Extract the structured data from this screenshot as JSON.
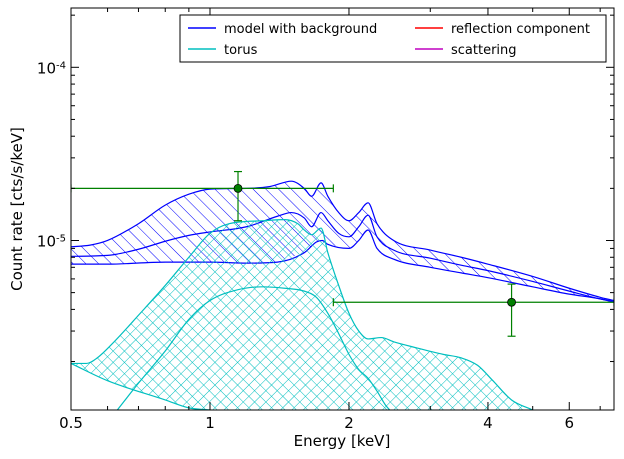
{
  "chart_data": {
    "type": "line",
    "title": "",
    "xlabel": "Energy [keV]",
    "ylabel": "Count rate [cts/s/keV]",
    "x_scale": "log",
    "y_scale": "log",
    "xlim": [
      0.5,
      7.5
    ],
    "ylim": [
      1.05e-06,
      0.00022
    ],
    "grid": false,
    "legend_position": "top-right",
    "legend_columns": 2,
    "x_ticks": [
      {
        "value": 0.5,
        "label": "0.5"
      },
      {
        "value": 1,
        "label": "1"
      },
      {
        "value": 2,
        "label": "2"
      },
      {
        "value": 4,
        "label": "4"
      },
      {
        "value": 6,
        "label": "6"
      }
    ],
    "y_ticks": [
      {
        "value": 1e-05,
        "base": "10",
        "exponent": "-5"
      },
      {
        "value": 0.0001,
        "base": "10",
        "exponent": "-4"
      }
    ],
    "legend": [
      {
        "name": "model with background",
        "color": "#0000ff"
      },
      {
        "name": "reflection component",
        "color": "#ff0000"
      },
      {
        "name": "torus",
        "color": "#00bfbf"
      },
      {
        "name": "scattering",
        "color": "#bf00bf"
      }
    ],
    "bands": [
      {
        "name": "model with background",
        "color": "#0000ff",
        "hatch": "diagonal",
        "upper": [
          [
            0.5,
            9.2e-06
          ],
          [
            0.55,
            9.4e-06
          ],
          [
            0.6,
            1e-05
          ],
          [
            0.7,
            1.25e-05
          ],
          [
            0.8,
            1.6e-05
          ],
          [
            0.9,
            1.85e-05
          ],
          [
            1.0,
            1.98e-05
          ],
          [
            1.2,
            2e-05
          ],
          [
            1.35,
            2.05e-05
          ],
          [
            1.5,
            2.2e-05
          ],
          [
            1.6,
            2e-05
          ],
          [
            1.66,
            1.8e-05
          ],
          [
            1.74,
            2.15e-05
          ],
          [
            1.8,
            1.8e-05
          ],
          [
            1.9,
            1.45e-05
          ],
          [
            2.0,
            1.3e-05
          ],
          [
            2.1,
            1.45e-05
          ],
          [
            2.2,
            1.65e-05
          ],
          [
            2.3,
            1.25e-05
          ],
          [
            2.5,
            1e-05
          ],
          [
            3.0,
            8.8e-06
          ],
          [
            3.5,
            8e-06
          ],
          [
            4.0,
            7.3e-06
          ],
          [
            5.0,
            6.2e-06
          ],
          [
            6.0,
            5.3e-06
          ],
          [
            7.0,
            4.7e-06
          ],
          [
            7.5,
            4.5e-06
          ]
        ],
        "lower": [
          [
            0.5,
            7.3e-06
          ],
          [
            0.6,
            7.3e-06
          ],
          [
            0.8,
            7.5e-06
          ],
          [
            1.0,
            7.5e-06
          ],
          [
            1.2,
            7.4e-06
          ],
          [
            1.4,
            7.5e-06
          ],
          [
            1.6,
            8.5e-06
          ],
          [
            1.7,
            9.8e-06
          ],
          [
            1.75,
            1e-05
          ],
          [
            1.8,
            9.5e-06
          ],
          [
            2.0,
            9e-06
          ],
          [
            2.1,
            1e-05
          ],
          [
            2.2,
            1.15e-05
          ],
          [
            2.3,
            9e-06
          ],
          [
            2.5,
            7.8e-06
          ],
          [
            3.0,
            7e-06
          ],
          [
            3.5,
            6.5e-06
          ],
          [
            4.0,
            6.1e-06
          ],
          [
            5.0,
            5.4e-06
          ],
          [
            6.0,
            4.9e-06
          ],
          [
            7.0,
            4.6e-06
          ],
          [
            7.5,
            4.4e-06
          ]
        ],
        "middle": [
          [
            0.5,
            8.1e-06
          ],
          [
            0.6,
            8.2e-06
          ],
          [
            0.7,
            8.9e-06
          ],
          [
            0.8,
            9.9e-06
          ],
          [
            0.9,
            1.07e-05
          ],
          [
            1.0,
            1.12e-05
          ],
          [
            1.2,
            1.2e-05
          ],
          [
            1.4,
            1.38e-05
          ],
          [
            1.5,
            1.45e-05
          ],
          [
            1.6,
            1.35e-05
          ],
          [
            1.66,
            1.2e-05
          ],
          [
            1.74,
            1.45e-05
          ],
          [
            1.8,
            1.3e-05
          ],
          [
            1.9,
            1.1e-05
          ],
          [
            2.0,
            1.05e-05
          ],
          [
            2.1,
            1.2e-05
          ],
          [
            2.2,
            1.4e-05
          ],
          [
            2.3,
            1.05e-05
          ],
          [
            2.5,
            8.8e-06
          ],
          [
            3.0,
            7.9e-06
          ],
          [
            3.5,
            7.2e-06
          ],
          [
            4.0,
            6.7e-06
          ],
          [
            5.0,
            5.8e-06
          ],
          [
            6.0,
            5.1e-06
          ],
          [
            7.0,
            4.6e-06
          ],
          [
            7.5,
            4.45e-06
          ]
        ]
      },
      {
        "name": "torus",
        "color": "#00bfbf",
        "hatch": "cross",
        "upper": [
          [
            0.5,
            1.95e-06
          ],
          [
            0.54,
            1.95e-06
          ],
          [
            0.57,
            2.1e-06
          ],
          [
            0.62,
            2.6e-06
          ],
          [
            0.7,
            3.7e-06
          ],
          [
            0.8,
            5.5e-06
          ],
          [
            0.9,
            8e-06
          ],
          [
            1.0,
            1.1e-05
          ],
          [
            1.1,
            1.25e-05
          ],
          [
            1.3,
            1.3e-05
          ],
          [
            1.45,
            1.32e-05
          ],
          [
            1.55,
            1.25e-05
          ],
          [
            1.6,
            1.15e-05
          ],
          [
            1.66,
            1.08e-05
          ],
          [
            1.74,
            1.18e-05
          ],
          [
            1.8,
            8.5e-06
          ],
          [
            1.9,
            5.5e-06
          ],
          [
            2.0,
            3.8e-06
          ],
          [
            2.1,
            3e-06
          ],
          [
            2.2,
            2.7e-06
          ],
          [
            2.35,
            2.75e-06
          ],
          [
            2.5,
            2.6e-06
          ],
          [
            2.8,
            2.4e-06
          ],
          [
            3.2,
            2.2e-06
          ],
          [
            3.5,
            2.1e-06
          ],
          [
            3.8,
            1.9e-06
          ],
          [
            4.1,
            1.55e-06
          ],
          [
            4.5,
            1.2e-06
          ],
          [
            5.0,
            1.05e-06
          ]
        ],
        "lower": [
          [
            0.5,
            1.95e-06
          ],
          [
            0.6,
            1.55e-06
          ],
          [
            0.8,
            1.2e-06
          ],
          [
            0.9,
            1.08e-06
          ],
          [
            1.0,
            1.05e-06
          ]
        ],
        "inner": [
          [
            0.63,
            1.05e-06
          ],
          [
            0.7,
            1.5e-06
          ],
          [
            0.8,
            2.3e-06
          ],
          [
            0.9,
            3.5e-06
          ],
          [
            1.0,
            4.5e-06
          ],
          [
            1.15,
            5.2e-06
          ],
          [
            1.3,
            5.4e-06
          ],
          [
            1.45,
            5.3e-06
          ],
          [
            1.6,
            5.1e-06
          ],
          [
            1.7,
            4.7e-06
          ],
          [
            1.8,
            3.8e-06
          ],
          [
            1.9,
            2.9e-06
          ],
          [
            2.0,
            2.2e-06
          ],
          [
            2.1,
            1.8e-06
          ],
          [
            2.2,
            1.6e-06
          ],
          [
            2.3,
            1.35e-06
          ],
          [
            2.4,
            1.12e-06
          ],
          [
            2.45,
            1.05e-06
          ]
        ]
      }
    ],
    "data_points": {
      "name": "data",
      "color": "#008000",
      "points": [
        {
          "x": 1.15,
          "y": 2e-05,
          "xerr": [
            0.5,
            1.85
          ],
          "yerr": [
            1.3e-05,
            2.5e-05
          ]
        },
        {
          "x": 4.5,
          "y": 4.4e-06,
          "xerr": [
            1.85,
            7.5
          ],
          "yerr": [
            2.8e-06,
            5.6e-06
          ]
        }
      ]
    }
  },
  "colors": {
    "axes": "#000000",
    "background": "#ffffff"
  }
}
